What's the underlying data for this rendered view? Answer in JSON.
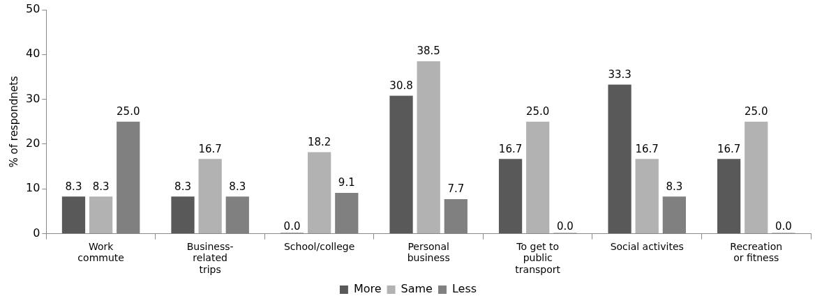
{
  "chart_data": {
    "type": "bar",
    "ylabel": "% of respondnets",
    "categories": [
      "Work\ncommute",
      "Business-\nrelated\ntrips",
      "School/college",
      "Personal\nbusiness",
      "To get to\npublic\ntransport",
      "Social activites",
      "Recreation\nor fitness"
    ],
    "series": [
      {
        "name": "More",
        "color": "#595959",
        "values": [
          8.3,
          8.3,
          0.0,
          30.8,
          16.7,
          33.3,
          16.7
        ],
        "value_labels": [
          "8.3",
          "8.3",
          "0.0",
          "30.8",
          "16.7",
          "33.3",
          "16.7"
        ]
      },
      {
        "name": "Same",
        "color": "#b2b2b2",
        "values": [
          8.3,
          16.7,
          18.2,
          38.5,
          25.0,
          16.7,
          25.0
        ],
        "value_labels": [
          "8.3",
          "16.7",
          "18.2",
          "38.5",
          "25.0",
          "16.7",
          "25.0"
        ]
      },
      {
        "name": "Less",
        "color": "#808080",
        "values": [
          25.0,
          8.3,
          9.1,
          7.7,
          0.0,
          8.3,
          0.0
        ],
        "value_labels": [
          "25.0",
          "8.3",
          "9.1",
          "7.7",
          "0.0",
          "8.3",
          "0.0"
        ]
      }
    ],
    "ylim": [
      0,
      50
    ],
    "yticks": [
      0,
      10,
      20,
      30,
      40,
      50
    ],
    "grid": false,
    "legend": "bottom"
  }
}
